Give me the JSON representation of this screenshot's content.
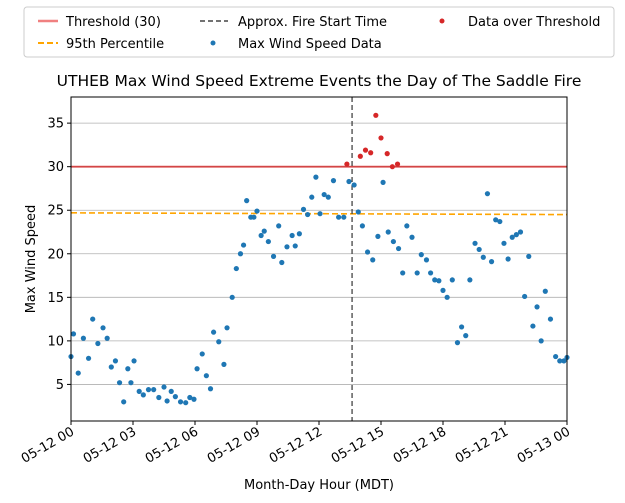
{
  "chart_data": {
    "type": "scatter",
    "title": "UTHEB Max Wind Speed Extreme Events the Day of The Saddle Fire",
    "xlabel": "Month-Day Hour (MDT)",
    "ylabel": "Max Wind Speed",
    "xlim": [
      "2023-05-12 00:00",
      "2023-05-13 00:00"
    ],
    "ylim": [
      0.8,
      38
    ],
    "x_ticks": [
      "05-12 00",
      "05-12 03",
      "05-12 06",
      "05-12 09",
      "05-12 12",
      "05-12 15",
      "05-12 18",
      "05-12 21",
      "05-13 00"
    ],
    "y_ticks": [
      5,
      10,
      15,
      20,
      25,
      30,
      35
    ],
    "grid": "horizontal",
    "legend_position": "top",
    "legend": {
      "threshold": "Threshold (30)",
      "percentile": "95th Percentile",
      "fire_start": "Approx. Fire Start Time",
      "data": "Max Wind Speed Data",
      "over": "Data over Threshold"
    },
    "colors": {
      "threshold": "#f08080",
      "threshold_line": "#d62728",
      "percentile": "#ffa500",
      "fire_start": "#444444",
      "data": "#1f77b4",
      "over": "#d62728"
    },
    "threshold": 30,
    "percentile_95": [
      24.7,
      24.5
    ],
    "fire_start_hour": 13.6,
    "series": [
      {
        "name": "Max Wind Speed Data",
        "x_hours": [
          0.0,
          0.12,
          0.35,
          0.6,
          0.85,
          1.05,
          1.3,
          1.55,
          1.75,
          1.95,
          2.15,
          2.35,
          2.55,
          2.75,
          2.9,
          3.05,
          3.3,
          3.5,
          3.75,
          4.0,
          4.25,
          4.5,
          4.65,
          4.85,
          5.05,
          5.3,
          5.55,
          5.75,
          5.95,
          6.1,
          6.35,
          6.55,
          6.75,
          6.9,
          7.15,
          7.4,
          7.55,
          7.8,
          8.0,
          8.2,
          8.35,
          8.5,
          8.7,
          8.85,
          9.0,
          9.2,
          9.35,
          9.55,
          9.8,
          10.05,
          10.2,
          10.45,
          10.7,
          10.85,
          11.05,
          11.25,
          11.45,
          11.65,
          11.85,
          12.05,
          12.25,
          12.45,
          12.7,
          12.95,
          13.2,
          13.45,
          13.7,
          13.9,
          14.1,
          14.35,
          14.6,
          14.85,
          15.1,
          15.35,
          15.6,
          15.85,
          16.05,
          16.25,
          16.5,
          16.75,
          16.95,
          17.2,
          17.4,
          17.6,
          17.8,
          18.0,
          18.2,
          18.45,
          18.7,
          18.9,
          19.1,
          19.3,
          19.55,
          19.75,
          19.95,
          20.15,
          20.35,
          20.55,
          20.75,
          20.95,
          21.15,
          21.35,
          21.55,
          21.75,
          21.95,
          22.15,
          22.35,
          22.55,
          22.75,
          22.95,
          23.2,
          23.45,
          23.65,
          23.85,
          24.0
        ],
        "values": [
          8.2,
          10.8,
          6.3,
          10.3,
          8.0,
          12.5,
          9.7,
          11.5,
          10.3,
          7.0,
          7.7,
          5.2,
          3.0,
          6.8,
          5.2,
          7.7,
          4.2,
          3.8,
          4.4,
          4.4,
          3.5,
          4.7,
          3.1,
          4.2,
          3.6,
          3.0,
          2.9,
          3.5,
          3.3,
          6.8,
          8.5,
          6.0,
          4.5,
          11.0,
          9.9,
          7.3,
          11.5,
          15.0,
          18.3,
          20.0,
          21.0,
          26.1,
          24.2,
          24.2,
          24.9,
          22.1,
          22.6,
          21.4,
          19.7,
          23.2,
          19.0,
          20.8,
          22.1,
          20.9,
          22.3,
          25.1,
          24.5,
          26.5,
          28.8,
          24.6,
          26.8,
          26.5,
          28.4,
          24.2,
          24.2,
          28.3,
          27.9,
          24.8,
          23.2,
          20.2,
          19.3,
          22.0,
          28.2,
          22.5,
          21.4,
          20.6,
          17.8,
          23.2,
          21.9,
          17.8,
          19.9,
          19.3,
          17.8,
          17.0,
          16.9,
          15.8,
          15.0,
          17.0,
          9.8,
          11.6,
          10.6,
          17.0,
          21.2,
          20.5,
          19.6,
          26.9,
          19.1,
          23.9,
          23.7,
          21.2,
          19.4,
          21.9,
          22.2,
          22.5,
          15.1,
          19.7,
          11.7,
          13.9,
          10.0,
          15.7,
          12.5,
          8.2,
          7.7,
          7.7,
          8.1
        ]
      },
      {
        "name": "Data over Threshold",
        "x_hours": [
          13.35,
          14.0,
          14.25,
          14.5,
          14.75,
          15.0,
          15.3,
          15.55,
          15.8
        ],
        "values": [
          30.3,
          31.2,
          31.9,
          31.6,
          35.9,
          33.3,
          31.5,
          30.0,
          30.3
        ]
      }
    ]
  }
}
